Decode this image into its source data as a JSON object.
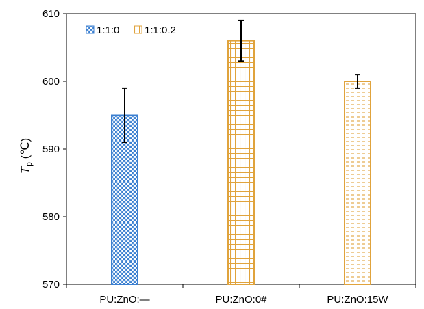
{
  "chart_data": {
    "type": "bar",
    "categories": [
      "PU:ZnO:—",
      "PU:ZnO:0#",
      "PU:ZnO:15W"
    ],
    "ylabel": {
      "symbol": "T",
      "subscript": "p",
      "unit": " (℃)"
    },
    "ylim": [
      570,
      610
    ],
    "yticks": [
      570,
      580,
      590,
      600,
      610
    ],
    "grid": false,
    "legend_position": "top-left",
    "legend": [
      {
        "label": "1:1:0",
        "color": "#3b7fd0",
        "pattern": "checker"
      },
      {
        "label": "1:1:0.2",
        "color": "#e0a33c",
        "pattern": "grid"
      }
    ],
    "bars": [
      {
        "category": "PU:ZnO:—",
        "value": 595,
        "error_low": 591,
        "error_high": 599,
        "color": "#3b7fd0",
        "pattern": "checker"
      },
      {
        "category": "PU:ZnO:0#",
        "value": 606,
        "error_low": 603,
        "error_high": 609,
        "color": "#e0a33c",
        "pattern": "grid"
      },
      {
        "category": "PU:ZnO:15W",
        "value": 600,
        "error_low": 599,
        "error_high": 601,
        "color": "#e0a33c",
        "pattern": "dash"
      }
    ]
  }
}
